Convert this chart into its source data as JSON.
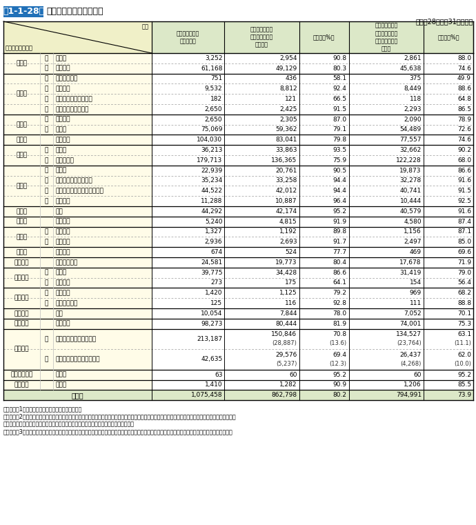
{
  "title_box": "第1-1-28表",
  "title_rest": " 全国の防火管理実施状況",
  "title_box_color": "#2070b8",
  "subtitle": "（平成28年３月31日現在）",
  "col_headers": [
    "防火管理実施義\n務対象物数",
    "防火管理者を選\n任している防火\n対象物数",
    "選任率（%）",
    "防火管理に係る\n消防計画を作成\nしている防火対\n象物数",
    "作成率（%）"
  ],
  "rows": [
    {
      "cat": "（一）",
      "sub": "イ",
      "name": "劇場等",
      "v1": "3,252",
      "v2": "2,954",
      "v3": "90.8",
      "v4": "2,861",
      "v5": "88.0",
      "cat_rows": 2
    },
    {
      "cat": "",
      "sub": "ロ",
      "name": "公会堂等",
      "v1": "61,168",
      "v2": "49,129",
      "v3": "80.3",
      "v4": "45,638",
      "v5": "74.6",
      "cat_rows": 0
    },
    {
      "cat": "（二）",
      "sub": "イ",
      "name": "キャバレー等",
      "v1": "751",
      "v2": "436",
      "v3": "58.1",
      "v4": "375",
      "v5": "49.9",
      "cat_rows": 4
    },
    {
      "cat": "",
      "sub": "ロ",
      "name": "遊技場等",
      "v1": "9,532",
      "v2": "8,812",
      "v3": "92.4",
      "v4": "8,449",
      "v5": "88.6",
      "cat_rows": 0
    },
    {
      "cat": "",
      "sub": "ハ",
      "name": "性風俗特殊営業店舗等",
      "v1": "182",
      "v2": "121",
      "v3": "66.5",
      "v4": "118",
      "v5": "64.8",
      "cat_rows": 0
    },
    {
      "cat": "",
      "sub": "ニ",
      "name": "カラオケボックス等",
      "v1": "2,650",
      "v2": "2,425",
      "v3": "91.5",
      "v4": "2,293",
      "v5": "86.5",
      "cat_rows": 0
    },
    {
      "cat": "（三）",
      "sub": "イ",
      "name": "料理店等",
      "v1": "2,650",
      "v2": "2,305",
      "v3": "87.0",
      "v4": "2,090",
      "v5": "78.9",
      "cat_rows": 2
    },
    {
      "cat": "",
      "sub": "ロ",
      "name": "飲食店",
      "v1": "75,069",
      "v2": "59,362",
      "v3": "79.1",
      "v4": "54,489",
      "v5": "72.6",
      "cat_rows": 0
    },
    {
      "cat": "（四）",
      "sub": "",
      "name": "百貨店等",
      "v1": "104,030",
      "v2": "83,041",
      "v3": "79.8",
      "v4": "77,557",
      "v5": "74.6",
      "cat_rows": 1
    },
    {
      "cat": "（五）",
      "sub": "イ",
      "name": "旅館等",
      "v1": "36,213",
      "v2": "33,863",
      "v3": "93.5",
      "v4": "32,662",
      "v5": "90.2",
      "cat_rows": 2
    },
    {
      "cat": "",
      "sub": "ロ",
      "name": "共同住宅等",
      "v1": "179,713",
      "v2": "136,365",
      "v3": "75.9",
      "v4": "122,228",
      "v5": "68.0",
      "cat_rows": 0
    },
    {
      "cat": "（六）",
      "sub": "イ",
      "name": "病院等",
      "v1": "22,939",
      "v2": "20,761",
      "v3": "90.5",
      "v4": "19,873",
      "v5": "86.6",
      "cat_rows": 4
    },
    {
      "cat": "",
      "sub": "ロ",
      "name": "特別養護老人ホーム等",
      "v1": "35,234",
      "v2": "33,258",
      "v3": "94.4",
      "v4": "32,278",
      "v5": "91.6",
      "cat_rows": 0
    },
    {
      "cat": "",
      "sub": "ハ",
      "name": "老人デイサービスセンター等",
      "v1": "44,522",
      "v2": "42,012",
      "v3": "94.4",
      "v4": "40,741",
      "v5": "91.5",
      "cat_rows": 0
    },
    {
      "cat": "",
      "sub": "ニ",
      "name": "幼稚園等",
      "v1": "11,288",
      "v2": "10,887",
      "v3": "96.4",
      "v4": "10,444",
      "v5": "92.5",
      "cat_rows": 0
    },
    {
      "cat": "（七）",
      "sub": "",
      "name": "学校",
      "v1": "44,292",
      "v2": "42,174",
      "v3": "95.2",
      "v4": "40,579",
      "v5": "91.6",
      "cat_rows": 1
    },
    {
      "cat": "（八）",
      "sub": "",
      "name": "図書館等",
      "v1": "5,240",
      "v2": "4,815",
      "v3": "91.9",
      "v4": "4,580",
      "v5": "87.4",
      "cat_rows": 1
    },
    {
      "cat": "（九）",
      "sub": "イ",
      "name": "特殊浴場",
      "v1": "1,327",
      "v2": "1,192",
      "v3": "89.8",
      "v4": "1,156",
      "v5": "87.1",
      "cat_rows": 2
    },
    {
      "cat": "",
      "sub": "ロ",
      "name": "一般浴場",
      "v1": "2,936",
      "v2": "2,693",
      "v3": "91.7",
      "v4": "2,497",
      "v5": "85.0",
      "cat_rows": 0
    },
    {
      "cat": "（十）",
      "sub": "",
      "name": "停車場等",
      "v1": "674",
      "v2": "524",
      "v3": "77.7",
      "v4": "469",
      "v5": "69.6",
      "cat_rows": 1
    },
    {
      "cat": "（十一）",
      "sub": "",
      "name": "神社・寺院等",
      "v1": "24,581",
      "v2": "19,773",
      "v3": "80.4",
      "v4": "17,678",
      "v5": "71.9",
      "cat_rows": 1
    },
    {
      "cat": "（十二）",
      "sub": "イ",
      "name": "工場等",
      "v1": "39,775",
      "v2": "34,428",
      "v3": "86.6",
      "v4": "31,419",
      "v5": "79.0",
      "cat_rows": 2
    },
    {
      "cat": "",
      "sub": "ロ",
      "name": "スタジオ",
      "v1": "273",
      "v2": "175",
      "v3": "64.1",
      "v4": "154",
      "v5": "56.4",
      "cat_rows": 0
    },
    {
      "cat": "（十三）",
      "sub": "イ",
      "name": "駐車場等",
      "v1": "1,420",
      "v2": "1,125",
      "v3": "79.2",
      "v4": "969",
      "v5": "68.2",
      "cat_rows": 2
    },
    {
      "cat": "",
      "sub": "ロ",
      "name": "航空機格納庫",
      "v1": "125",
      "v2": "116",
      "v3": "92.8",
      "v4": "111",
      "v5": "88.8",
      "cat_rows": 0
    },
    {
      "cat": "（十四）",
      "sub": "",
      "name": "倉庫",
      "v1": "10,054",
      "v2": "7,844",
      "v3": "78.0",
      "v4": "7,052",
      "v5": "70.1",
      "cat_rows": 1
    },
    {
      "cat": "（十五）",
      "sub": "",
      "name": "事務所等",
      "v1": "98,273",
      "v2": "80,444",
      "v3": "81.9",
      "v4": "74,001",
      "v5": "75.3",
      "cat_rows": 1
    },
    {
      "cat": "（十六）",
      "sub": "イ",
      "name": "特定複合用途防火対象物",
      "v1": "213,187",
      "v2": "150,846\n(28,887)",
      "v3": "70.8\n(13.6)",
      "v4": "134,527\n(23,764)",
      "v5": "63.1\n(11.1)",
      "cat_rows": 2
    },
    {
      "cat": "",
      "sub": "ロ",
      "name": "非特定複合用途防火対象物",
      "v1": "42,635",
      "v2": "29,576\n(5,237)",
      "v3": "69.4\n(12.3)",
      "v4": "26,437\n(4,268)",
      "v5": "62.0\n(10.0)",
      "cat_rows": 0
    },
    {
      "cat": "（十六の二）",
      "sub": "",
      "name": "地下街",
      "v1": "63",
      "v2": "60",
      "v3": "95.2",
      "v4": "60",
      "v5": "95.2",
      "cat_rows": 1
    },
    {
      "cat": "（十七）",
      "sub": "",
      "name": "文化財",
      "v1": "1,410",
      "v2": "1,282",
      "v3": "90.9",
      "v4": "1,206",
      "v5": "85.5",
      "cat_rows": 1
    },
    {
      "cat": "合　計",
      "sub": "",
      "name": "",
      "v1": "1,075,458",
      "v2": "862,798",
      "v3": "80.2",
      "v4": "794,991",
      "v5": "73.9",
      "cat_rows": 1
    }
  ],
  "notes": [
    "（備考）　1　「防火対象物実態等調査」により作成",
    "　　　　　2　防火対象物の管理権原者が複数であるときは、その全てが防火管理者の選任又は防火管理に係る消防計画の作成をしている場合のみ計上する。",
    "　　　　　　　（　）内は、部分的に選任又は作成されている防火対象物の数値である。",
    "　　　　　3　防火対象物の区分は、消防法施行令別表第一による区分であり、施設の名称はその例示である。以下本節においてことわりのない限り同じ。"
  ],
  "header_left_bg": "#f0f0c8",
  "header_right_bg": "#dce8c8",
  "row_left_bg": "#fffce8",
  "row_right_bg": "#ffffff",
  "total_bg": "#dce8c8",
  "solid_line_color": "#000000",
  "dashed_line_color": "#999999",
  "col_sep_color": "#bbbbbb"
}
